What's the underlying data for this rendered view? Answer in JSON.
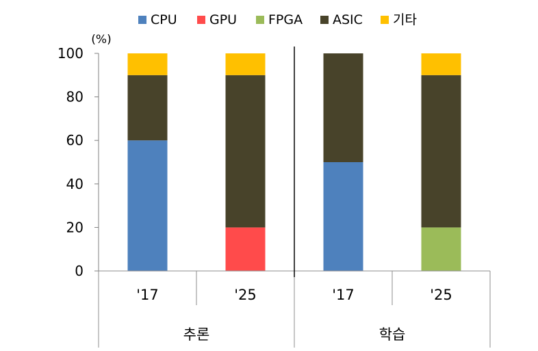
{
  "chart_data": {
    "type": "bar",
    "stacked": true,
    "unit_label": "(%)",
    "ylim": [
      0,
      100
    ],
    "yticks": [
      0,
      20,
      40,
      60,
      80,
      100
    ],
    "grid": false,
    "legend_position": "top",
    "groups": [
      {
        "label": "추론",
        "categories": [
          "'17",
          "'25"
        ]
      },
      {
        "label": "학습",
        "categories": [
          "'17",
          "'25"
        ]
      }
    ],
    "categories": [
      "'17",
      "'25",
      "'17",
      "'25"
    ],
    "series": [
      {
        "name": "CPU",
        "color": "#4e81bd",
        "values": [
          60,
          0,
          50,
          0
        ]
      },
      {
        "name": "GPU",
        "color": "#ff4b4b",
        "values": [
          0,
          20,
          0,
          0
        ]
      },
      {
        "name": "FPGA",
        "color": "#9bbb59",
        "values": [
          0,
          0,
          0,
          20
        ]
      },
      {
        "name": "ASIC",
        "color": "#48432a",
        "values": [
          30,
          70,
          50,
          70
        ]
      },
      {
        "name": "기타",
        "color": "#ffc000",
        "values": [
          10,
          10,
          0,
          10
        ]
      }
    ]
  }
}
